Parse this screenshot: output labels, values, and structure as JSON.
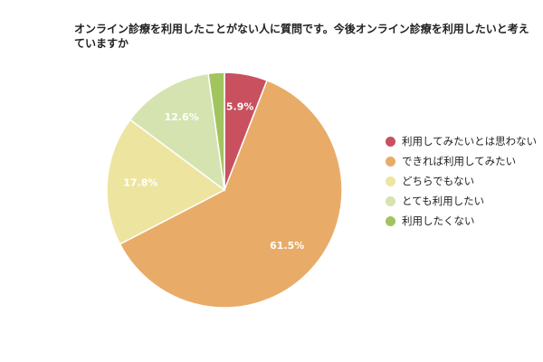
{
  "chart_data": {
    "type": "pie",
    "title": "オンライン診療を利用したことがない人に質問です。今後オンライン診療を利用したいと考えていますか",
    "unit": "%",
    "slices": [
      {
        "name": "利用してみたいとは思わない",
        "value": 5.9,
        "label": "5.9%",
        "color": "#c9505f"
      },
      {
        "name": "できれば利用してみたい",
        "value": 61.5,
        "label": "61.5%",
        "color": "#e8ac68"
      },
      {
        "name": "どちらでもない",
        "value": 17.8,
        "label": "17.8%",
        "color": "#ede59f"
      },
      {
        "name": "とても利用したい",
        "value": 12.6,
        "label": "12.6%",
        "color": "#d5e3b0"
      },
      {
        "name": "利用したくない",
        "value": 2.2,
        "label": "",
        "color": "#a1c45f"
      }
    ],
    "start_angle": "12 o'clock",
    "direction": "clockwise",
    "legend_position": "right"
  }
}
